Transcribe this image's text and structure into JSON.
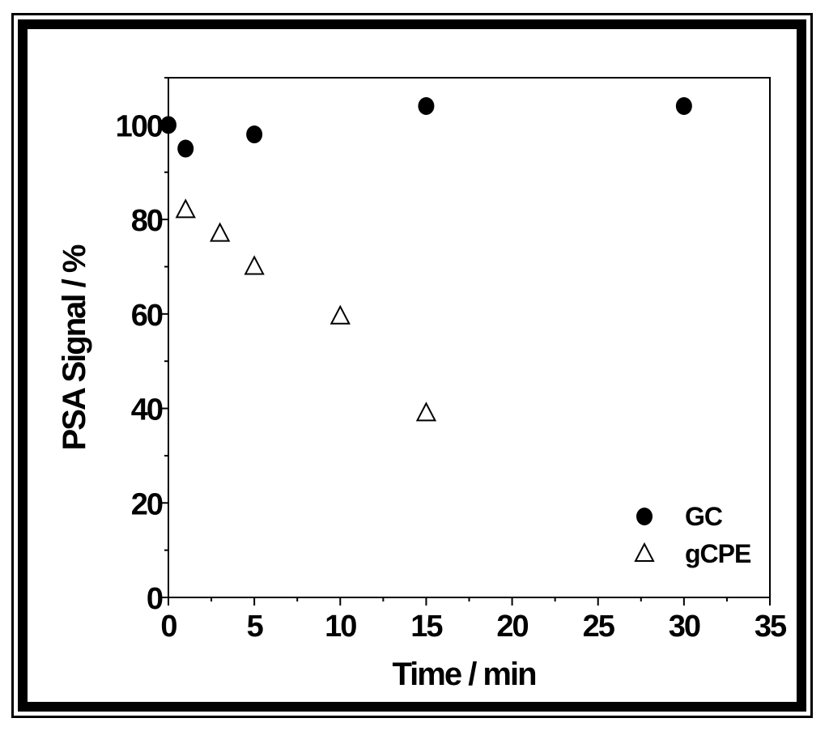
{
  "chart_data": {
    "type": "scatter",
    "title": "",
    "xlabel": "Time / min",
    "ylabel": "PSA Signal / %",
    "xlim": [
      0,
      35
    ],
    "ylim": [
      0,
      110
    ],
    "xticks": [
      0,
      5,
      10,
      15,
      20,
      25,
      30,
      35
    ],
    "yticks": [
      0,
      20,
      40,
      60,
      80,
      100
    ],
    "xtick_labels": [
      "0",
      "5",
      "10",
      "15",
      "20",
      "25",
      "30",
      "35"
    ],
    "ytick_labels": [
      "0",
      "20",
      "40",
      "60",
      "80",
      "100"
    ],
    "grid": false,
    "legend": "bottom-right",
    "series": [
      {
        "name": "GC",
        "marker": "filled-circle",
        "color": "#000000",
        "x": [
          0,
          1,
          5,
          15,
          30
        ],
        "y": [
          100,
          95,
          98,
          104,
          104
        ]
      },
      {
        "name": "gCPE",
        "marker": "open-triangle",
        "color": "#000000",
        "x": [
          1,
          3,
          5,
          10,
          15
        ],
        "y": [
          82,
          77,
          70,
          59.5,
          39
        ]
      }
    ]
  }
}
